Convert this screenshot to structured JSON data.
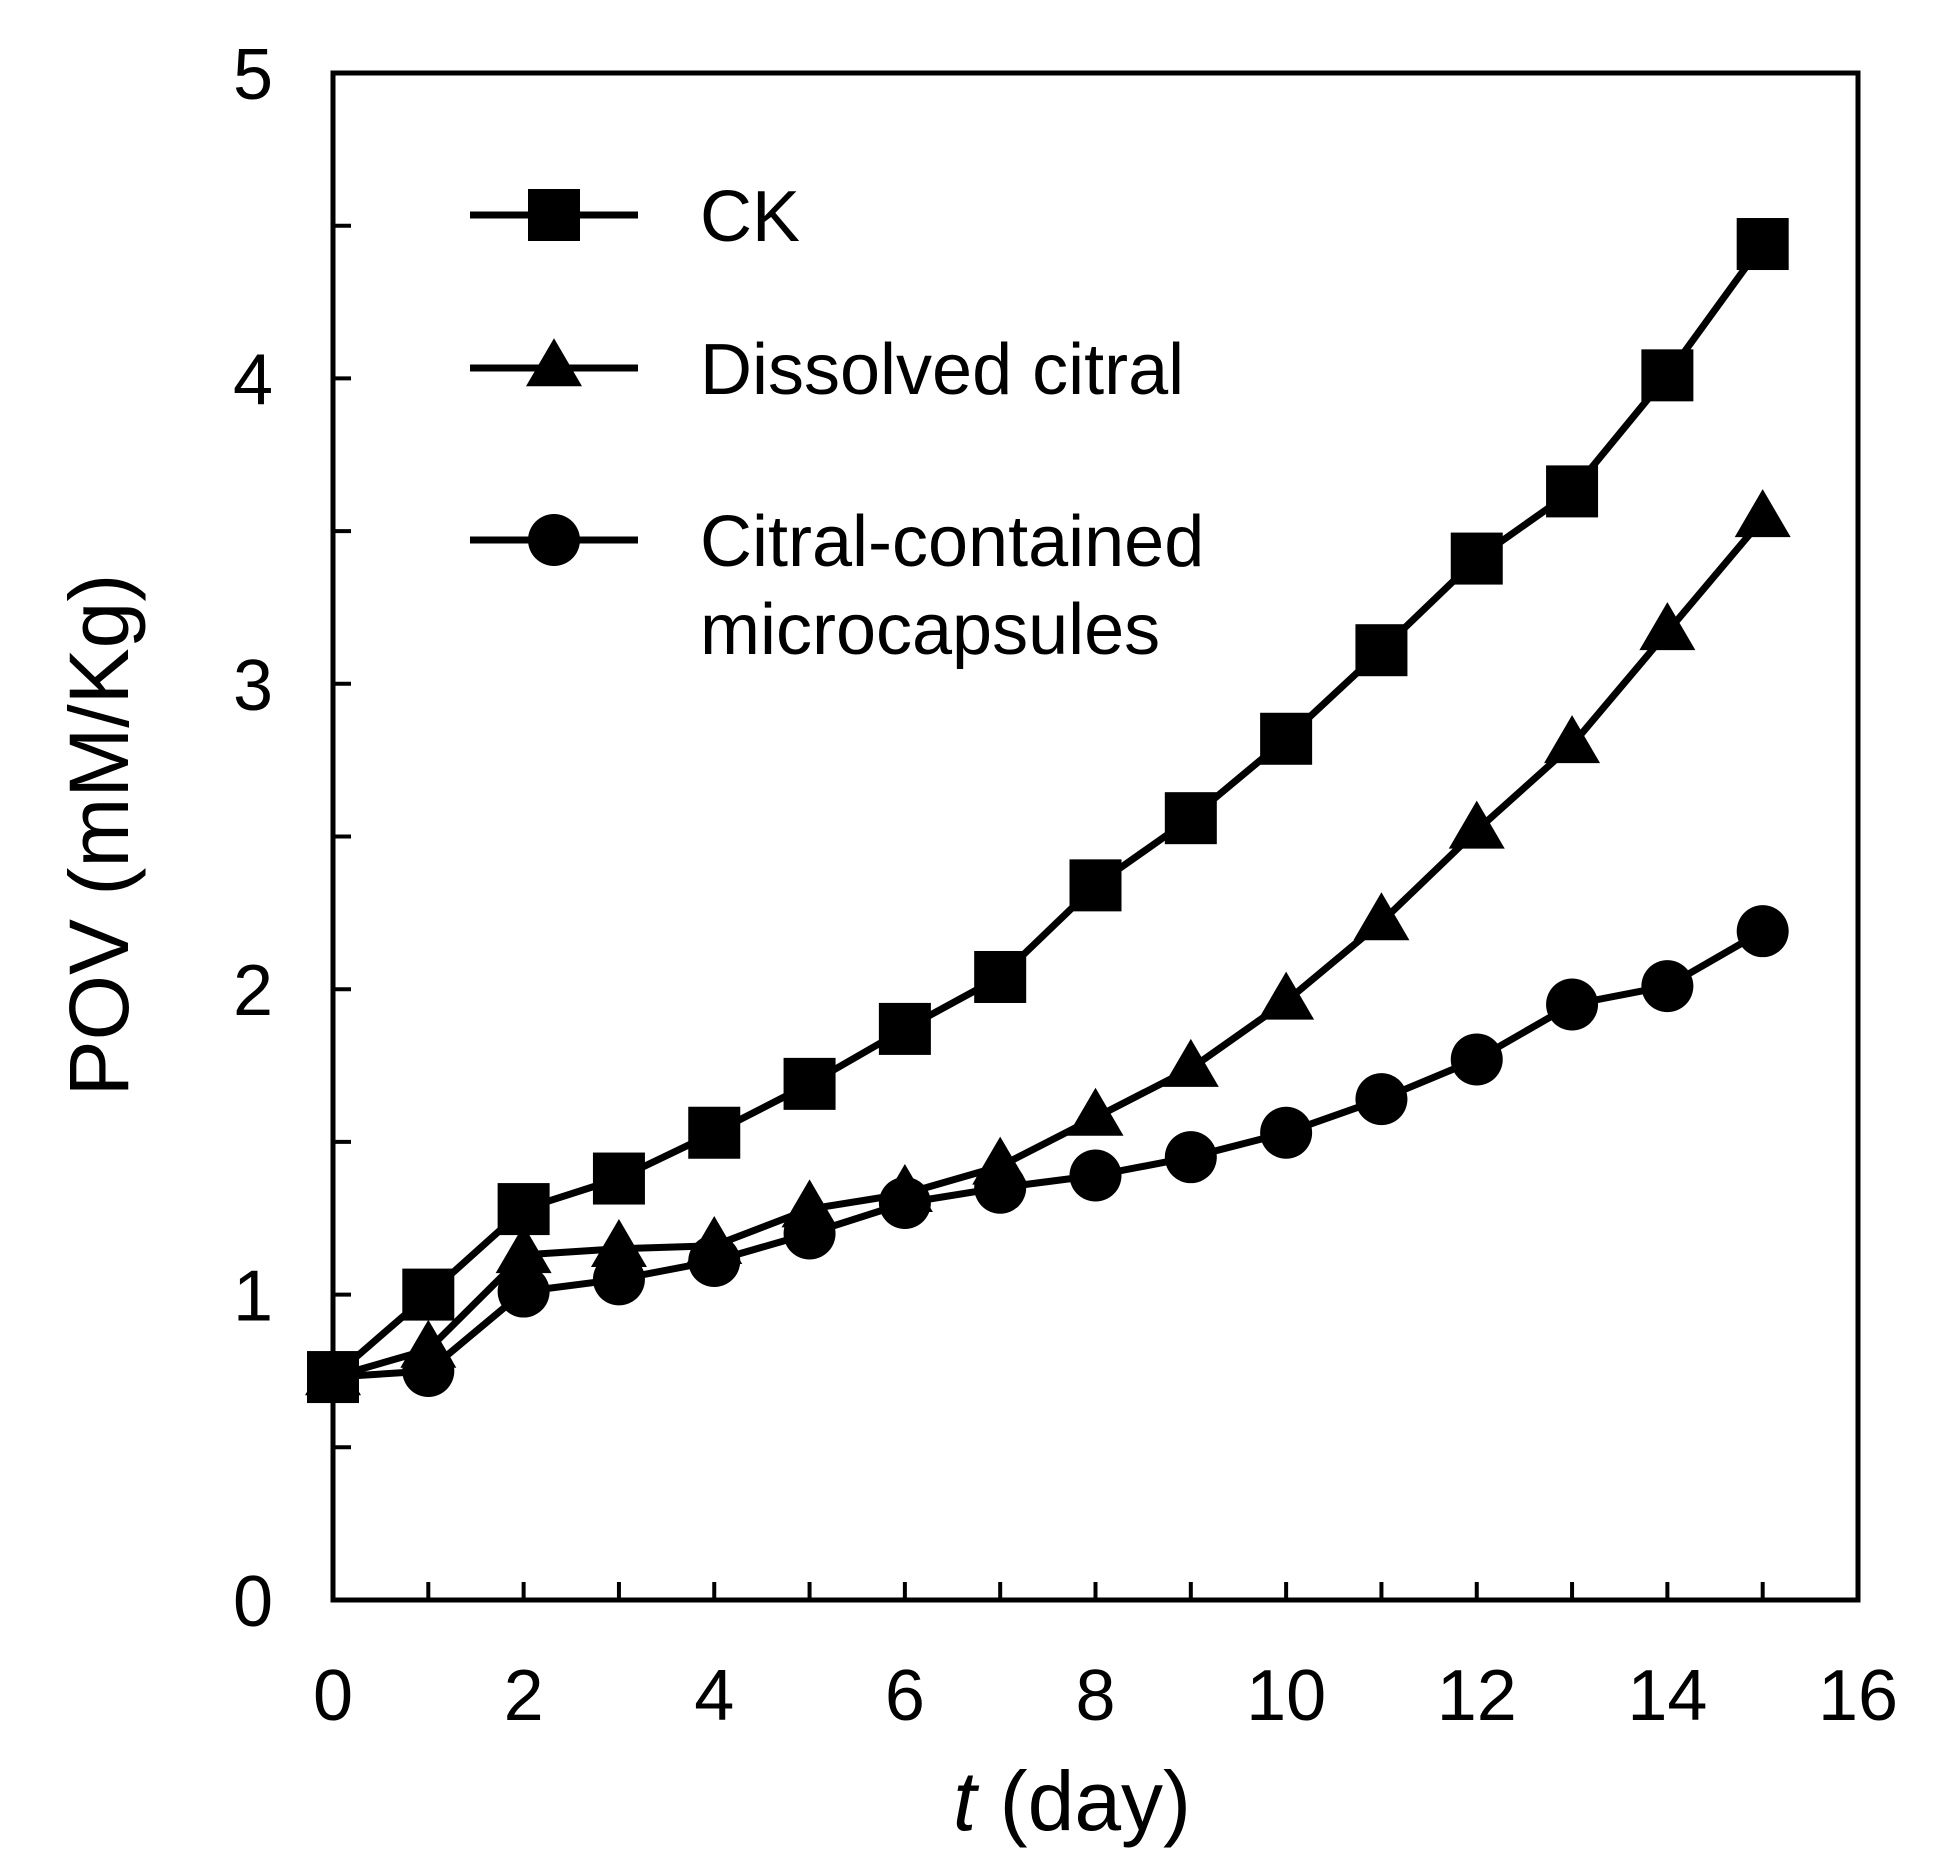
{
  "chart_data": {
    "type": "line",
    "title": "",
    "xlabel_italic": "t",
    "xlabel_rest": " (day)",
    "ylabel": "POV (mM/Kg)",
    "xlim": [
      0,
      16
    ],
    "ylim": [
      0,
      5
    ],
    "x_ticks": [
      0,
      2,
      4,
      6,
      8,
      10,
      12,
      14,
      16
    ],
    "x_minor_ticks": [
      1,
      3,
      5,
      7,
      9,
      11,
      13,
      15
    ],
    "y_ticks": [
      0,
      1,
      2,
      3,
      4,
      5
    ],
    "y_minor_ticks": [
      0.5,
      1.5,
      2.5,
      3.5,
      4.5
    ],
    "grid": false,
    "legend_position": "top-left",
    "line_color": "#000000",
    "x": [
      0,
      1,
      2,
      3,
      4,
      5,
      6,
      7,
      8,
      9,
      10,
      11,
      12,
      13,
      14,
      15
    ],
    "series": [
      {
        "name": "CK",
        "marker": "square",
        "values": [
          0.73,
          1.0,
          1.28,
          1.38,
          1.53,
          1.69,
          1.87,
          2.04,
          2.34,
          2.56,
          2.82,
          3.11,
          3.41,
          3.63,
          4.01,
          4.44
        ]
      },
      {
        "name": "Dissolved citral",
        "marker": "triangle",
        "values": [
          0.73,
          0.82,
          1.13,
          1.15,
          1.16,
          1.28,
          1.33,
          1.42,
          1.58,
          1.74,
          1.96,
          2.22,
          2.52,
          2.8,
          3.17,
          3.54
        ]
      },
      {
        "name": "Citral-contained microcapsules",
        "name_lines": [
          "Citral-contained",
          "microcapsules"
        ],
        "marker": "circle",
        "values": [
          0.73,
          0.75,
          1.01,
          1.05,
          1.11,
          1.2,
          1.3,
          1.35,
          1.39,
          1.45,
          1.53,
          1.64,
          1.77,
          1.95,
          2.01,
          2.19
        ]
      }
    ]
  }
}
